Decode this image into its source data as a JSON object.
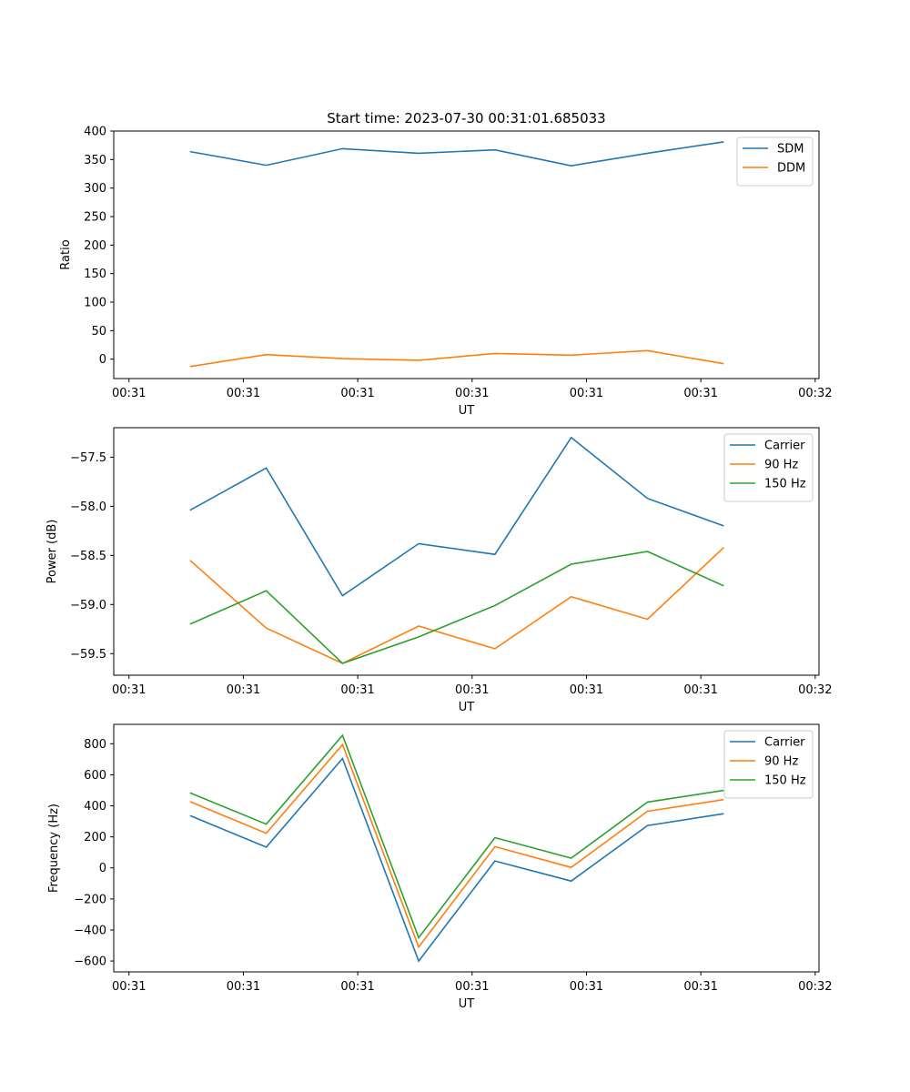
{
  "chart_data": [
    {
      "type": "line",
      "title": "Start time: 2023-07-30 00:31:01.685033",
      "xlabel": "UT",
      "ylabel": "Ratio",
      "xlim": [
        0,
        9.25
      ],
      "ylim": [
        -34,
        400
      ],
      "xticks": [
        0.2,
        1.7,
        3.2,
        4.7,
        6.2,
        7.7,
        9.2
      ],
      "xtick_labels": [
        "00:31",
        "00:31",
        "00:31",
        "00:31",
        "00:31",
        "00:31",
        "00:32"
      ],
      "yticks": [
        0,
        50,
        100,
        150,
        200,
        250,
        300,
        350,
        400
      ],
      "ytick_labels": [
        "0",
        "50",
        "100",
        "150",
        "200",
        "250",
        "300",
        "350",
        "400"
      ],
      "legend_position": "top-right",
      "x": [
        1,
        2,
        3,
        4,
        5,
        6,
        7,
        8
      ],
      "series": [
        {
          "name": "SDM",
          "color": "#1f77b4",
          "values": [
            364,
            340,
            369,
            361,
            367,
            339,
            361,
            381
          ]
        },
        {
          "name": "DDM",
          "color": "#ff7f0e",
          "values": [
            -13,
            8,
            1,
            -2,
            10,
            7,
            15,
            -8
          ]
        }
      ]
    },
    {
      "type": "line",
      "title": "",
      "xlabel": "UT",
      "ylabel": "Power (dB)",
      "xlim": [
        0,
        9.25
      ],
      "ylim": [
        -59.72,
        -57.2
      ],
      "xticks": [
        0.2,
        1.7,
        3.2,
        4.7,
        6.2,
        7.7,
        9.2
      ],
      "xtick_labels": [
        "00:31",
        "00:31",
        "00:31",
        "00:31",
        "00:31",
        "00:31",
        "00:32"
      ],
      "yticks": [
        -59.5,
        -59.0,
        -58.5,
        -58.0,
        -57.5
      ],
      "ytick_labels": [
        "−59.5",
        "−59.0",
        "−58.5",
        "−58.0",
        "−57.5"
      ],
      "legend_position": "top-right",
      "x": [
        1,
        2,
        3,
        4,
        5,
        6,
        7,
        8
      ],
      "series": [
        {
          "name": "Carrier",
          "color": "#1f77b4",
          "values": [
            -58.04,
            -57.61,
            -58.91,
            -58.38,
            -58.49,
            -57.3,
            -57.92,
            -58.2
          ]
        },
        {
          "name": "90 Hz",
          "color": "#ff7f0e",
          "values": [
            -58.55,
            -59.24,
            -59.6,
            -59.22,
            -59.45,
            -58.92,
            -59.15,
            -58.42
          ]
        },
        {
          "name": "150 Hz",
          "color": "#2ca02c",
          "values": [
            -59.2,
            -58.86,
            -59.6,
            -59.33,
            -59.01,
            -58.59,
            -58.46,
            -58.81
          ]
        }
      ]
    },
    {
      "type": "line",
      "title": "",
      "xlabel": "UT",
      "ylabel": "Frequency (Hz)",
      "xlim": [
        0,
        9.25
      ],
      "ylim": [
        -670,
        925
      ],
      "xticks": [
        0.2,
        1.7,
        3.2,
        4.7,
        6.2,
        7.7,
        9.2
      ],
      "xtick_labels": [
        "00:31",
        "00:31",
        "00:31",
        "00:31",
        "00:31",
        "00:31",
        "00:32"
      ],
      "yticks": [
        -600,
        -400,
        -200,
        0,
        200,
        400,
        600,
        800
      ],
      "ytick_labels": [
        "−600",
        "−400",
        "−200",
        "0",
        "200",
        "400",
        "600",
        "800"
      ],
      "legend_position": "top-right",
      "x": [
        1,
        2,
        3,
        4,
        5,
        6,
        7,
        8
      ],
      "series": [
        {
          "name": "Carrier",
          "color": "#1f77b4",
          "values": [
            337,
            134,
            705,
            -600,
            45,
            -85,
            273,
            349
          ]
        },
        {
          "name": "90 Hz",
          "color": "#ff7f0e",
          "values": [
            427,
            223,
            795,
            -510,
            137,
            3,
            365,
            440
          ]
        },
        {
          "name": "150 Hz",
          "color": "#2ca02c",
          "values": [
            484,
            282,
            854,
            -450,
            195,
            63,
            424,
            499
          ]
        }
      ]
    }
  ]
}
